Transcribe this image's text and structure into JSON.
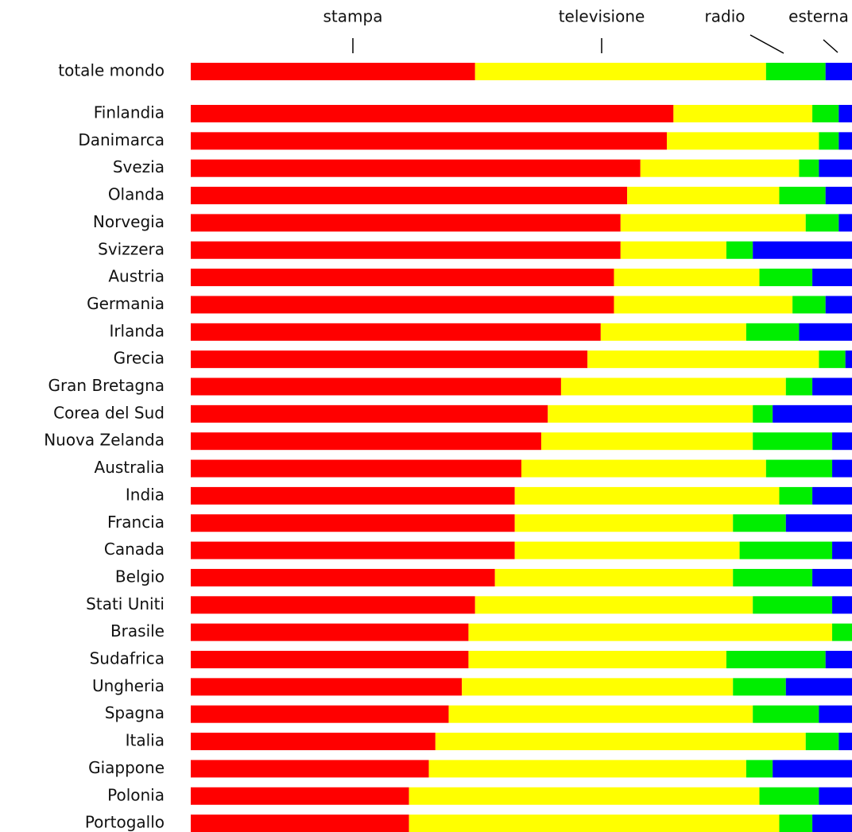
{
  "chart_data": {
    "type": "stacked-bar-horizontal",
    "categories": [
      "totale mondo",
      "Finlandia",
      "Danimarca",
      "Svezia",
      "Olanda",
      "Norvegia",
      "Svizzera",
      "Austria",
      "Germania",
      "Irlanda",
      "Grecia",
      "Gran Bretagna",
      "Corea del Sud",
      "Nuova Zelanda",
      "Australia",
      "India",
      "Francia",
      "Canada",
      "Belgio",
      "Stati Uniti",
      "Brasile",
      "Sudafrica",
      "Ungheria",
      "Spagna",
      "Italia",
      "Giappone",
      "Polonia",
      "Portogallo"
    ],
    "series": [
      {
        "name": "stampa",
        "color": "#ff0000",
        "values": [
          43,
          73,
          72,
          68,
          66,
          65,
          65,
          64,
          64,
          62,
          60,
          56,
          54,
          53,
          50,
          49,
          49,
          49,
          46,
          43,
          42,
          42,
          41,
          39,
          37,
          36,
          33,
          33
        ]
      },
      {
        "name": "televisione",
        "color": "#ffff00",
        "values": [
          44,
          21,
          23,
          24,
          23,
          28,
          16,
          22,
          27,
          22,
          35,
          34,
          31,
          32,
          37,
          40,
          33,
          34,
          36,
          42,
          55,
          39,
          41,
          46,
          56,
          48,
          53,
          56
        ]
      },
      {
        "name": "radio",
        "color": "#00ee00",
        "values": [
          9,
          4,
          3,
          3,
          7,
          5,
          4,
          8,
          5,
          8,
          4,
          4,
          3,
          12,
          10,
          5,
          8,
          14,
          12,
          12,
          3,
          15,
          8,
          10,
          5,
          4,
          9,
          5
        ]
      },
      {
        "name": "esterna",
        "color": "#0000ff",
        "values": [
          4,
          2,
          2,
          5,
          4,
          2,
          15,
          6,
          4,
          8,
          1,
          6,
          12,
          3,
          3,
          6,
          10,
          3,
          6,
          3,
          0,
          4,
          10,
          5,
          2,
          12,
          5,
          6
        ]
      }
    ],
    "xlim": [
      0,
      100
    ]
  }
}
